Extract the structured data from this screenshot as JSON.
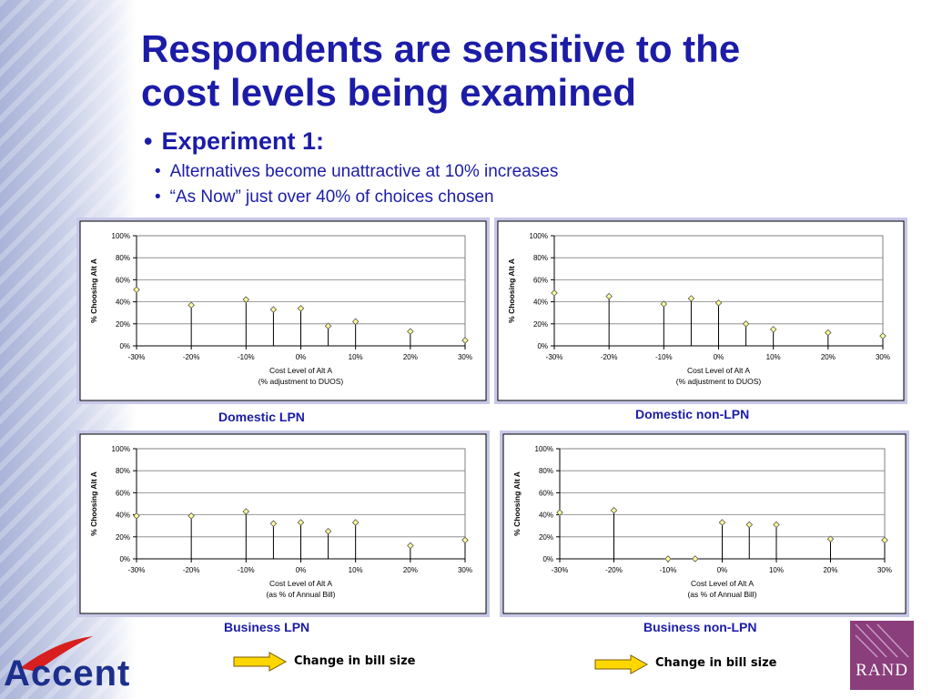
{
  "slide": {
    "title_line1": "Respondents are sensitive to the",
    "title_line2": "cost levels being examined",
    "bullet_main": "Experiment 1:",
    "sub1": "Alternatives become unattractive at 10% increases",
    "sub2": "“As Now” just over 40% of choices chosen",
    "bullet_glyph": "•",
    "change_label_1": "Change in bill size",
    "change_label_2": "Change in bill size",
    "logo_text": "Accent",
    "rand_text": "RAND"
  },
  "colors": {
    "title": "#1c1ca8",
    "marker_fill": "#ffff99",
    "panel_border": "#c8c8e8",
    "arrow_fill": "#ffd700",
    "logo_red": "#d81e1e",
    "rand_bg": "#8a3e7b"
  },
  "chart_data": [
    {
      "type": "scatter",
      "style": "stem",
      "caption": "Domestic LPN",
      "ylabel": "% Choosing Alt A",
      "xlabel_line1": "Cost Level of Alt A",
      "xlabel_line2": "(% adjustment to DUOS)",
      "xlim": [
        -30,
        30
      ],
      "ylim": [
        0,
        100
      ],
      "xticks": [
        "-30%",
        "-20%",
        "-10%",
        "0%",
        "10%",
        "20%",
        "30%"
      ],
      "yticks": [
        "0%",
        "20%",
        "40%",
        "60%",
        "80%",
        "100%"
      ],
      "grid": true,
      "x": [
        -30,
        -20,
        -10,
        -5,
        0,
        5,
        10,
        20,
        30
      ],
      "y": [
        51,
        37,
        42,
        33,
        34,
        18,
        22,
        13,
        5
      ]
    },
    {
      "type": "scatter",
      "style": "stem",
      "caption": "Domestic non-LPN",
      "ylabel": "% Choosing Alt A",
      "xlabel_line1": "Cost Level of Alt A",
      "xlabel_line2": "(% adjustment to DUOS)",
      "xlim": [
        -30,
        30
      ],
      "ylim": [
        0,
        100
      ],
      "xticks": [
        "-30%",
        "-20%",
        "-10%",
        "0%",
        "10%",
        "20%",
        "30%"
      ],
      "yticks": [
        "0%",
        "20%",
        "40%",
        "60%",
        "80%",
        "100%"
      ],
      "grid": true,
      "x": [
        -30,
        -20,
        -10,
        -5,
        0,
        5,
        10,
        20,
        30
      ],
      "y": [
        48,
        45,
        38,
        43,
        39,
        20,
        15,
        12,
        9
      ]
    },
    {
      "type": "scatter",
      "style": "stem",
      "caption": "Business LPN",
      "ylabel": "% Choosing Alt A",
      "xlabel_line1": "Cost Level of Alt A",
      "xlabel_line2": "(as % of Annual Bill)",
      "xlim": [
        -30,
        30
      ],
      "ylim": [
        0,
        100
      ],
      "xticks": [
        "-30%",
        "-20%",
        "-10%",
        "0%",
        "10%",
        "20%",
        "30%"
      ],
      "yticks": [
        "0%",
        "20%",
        "40%",
        "60%",
        "80%",
        "100%"
      ],
      "grid": true,
      "x": [
        -30,
        -20,
        -10,
        -5,
        0,
        5,
        10,
        20,
        30
      ],
      "y": [
        39,
        39,
        43,
        32,
        33,
        25,
        33,
        12,
        17
      ]
    },
    {
      "type": "scatter",
      "style": "stem",
      "caption": "Business non-LPN",
      "ylabel": "% Choosing Alt A",
      "xlabel_line1": "Cost Level of Alt A",
      "xlabel_line2": "(as % of Annual Bill)",
      "xlim": [
        -30,
        30
      ],
      "ylim": [
        0,
        100
      ],
      "xticks": [
        "-30%",
        "-20%",
        "-10%",
        "0%",
        "10%",
        "20%",
        "30%"
      ],
      "yticks": [
        "0%",
        "20%",
        "40%",
        "60%",
        "80%",
        "100%"
      ],
      "grid": true,
      "x": [
        -30,
        -20,
        -10,
        -5,
        0,
        5,
        10,
        20,
        30
      ],
      "y": [
        42,
        44,
        0,
        0,
        33,
        31,
        31,
        18,
        17
      ]
    }
  ]
}
